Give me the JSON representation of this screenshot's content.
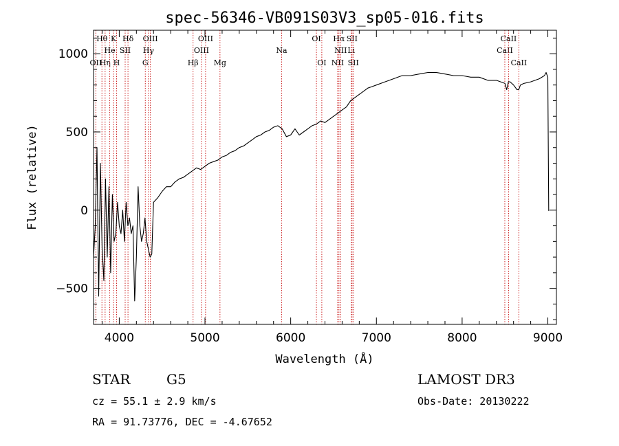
{
  "chart_data": {
    "type": "line",
    "title": "spec-56346-VB091S03V3_sp05-016.fits",
    "xlabel": "Wavelength (Å)",
    "ylabel": "Flux (relative)",
    "xlim": [
      3700,
      9100
    ],
    "ylim": [
      -730,
      1150
    ],
    "xticks": [
      4000,
      5000,
      6000,
      7000,
      8000,
      9000
    ],
    "yticks": [
      -500,
      0,
      500,
      1000
    ],
    "series": [
      {
        "name": "spectrum",
        "x": [
          3700,
          3720,
          3740,
          3760,
          3780,
          3800,
          3820,
          3840,
          3860,
          3880,
          3900,
          3920,
          3940,
          3960,
          3980,
          4000,
          4020,
          4040,
          4060,
          4080,
          4100,
          4120,
          4140,
          4160,
          4180,
          4200,
          4220,
          4240,
          4260,
          4280,
          4300,
          4320,
          4340,
          4360,
          4380,
          4400,
          4450,
          4500,
          4550,
          4600,
          4650,
          4700,
          4750,
          4800,
          4850,
          4900,
          4950,
          5000,
          5050,
          5100,
          5150,
          5200,
          5250,
          5300,
          5350,
          5400,
          5450,
          5500,
          5550,
          5600,
          5650,
          5700,
          5750,
          5800,
          5850,
          5900,
          5950,
          6000,
          6050,
          6100,
          6150,
          6200,
          6250,
          6300,
          6350,
          6400,
          6450,
          6500,
          6550,
          6600,
          6650,
          6700,
          6750,
          6800,
          6850,
          6900,
          6950,
          7000,
          7100,
          7200,
          7300,
          7400,
          7500,
          7600,
          7700,
          7800,
          7900,
          8000,
          8100,
          8200,
          8300,
          8400,
          8450,
          8500,
          8520,
          8540,
          8560,
          8600,
          8640,
          8660,
          8680,
          8720,
          8800,
          8900,
          8960,
          8980,
          9000,
          9010
        ],
        "y": [
          -300,
          -100,
          400,
          -550,
          300,
          -250,
          -450,
          200,
          -300,
          150,
          -400,
          100,
          -200,
          -150,
          50,
          -100,
          -150,
          0,
          -200,
          50,
          -100,
          -50,
          -150,
          -100,
          -580,
          -300,
          150,
          -100,
          -200,
          -150,
          -50,
          -200,
          -250,
          -300,
          -280,
          50,
          80,
          120,
          150,
          150,
          180,
          200,
          210,
          230,
          250,
          270,
          260,
          280,
          300,
          310,
          320,
          340,
          350,
          370,
          380,
          400,
          410,
          430,
          450,
          470,
          480,
          500,
          510,
          530,
          540,
          520,
          470,
          480,
          520,
          480,
          500,
          520,
          540,
          550,
          570,
          560,
          580,
          600,
          620,
          640,
          660,
          700,
          720,
          740,
          760,
          780,
          790,
          800,
          820,
          840,
          860,
          860,
          870,
          880,
          880,
          870,
          860,
          860,
          850,
          850,
          830,
          830,
          820,
          810,
          770,
          820,
          820,
          800,
          770,
          770,
          800,
          810,
          820,
          840,
          860,
          880,
          850,
          -5
        ],
        "color": "#000000"
      }
    ],
    "line_markers": [
      {
        "name": "OII",
        "wavelength": 3727,
        "label_row": 2
      },
      {
        "name": "Hθ",
        "wavelength": 3798,
        "label_row": 0
      },
      {
        "name": "Hη",
        "wavelength": 3835,
        "label_row": 2
      },
      {
        "name": "K",
        "wavelength": 3934,
        "label_row": 0
      },
      {
        "name": "He",
        "wavelength": 3889,
        "label_row": 1
      },
      {
        "name": "H",
        "wavelength": 3969,
        "label_row": 2
      },
      {
        "name": "SII",
        "wavelength": 4069,
        "label_row": 1
      },
      {
        "name": "Hδ",
        "wavelength": 4102,
        "label_row": 0
      },
      {
        "name": "G",
        "wavelength": 4304,
        "label_row": 2
      },
      {
        "name": "Hγ",
        "wavelength": 4341,
        "label_row": 1
      },
      {
        "name": "OIII",
        "wavelength": 4363,
        "label_row": 0
      },
      {
        "name": "Hβ",
        "wavelength": 4861,
        "label_row": 2
      },
      {
        "name": "OIII",
        "wavelength": 4959,
        "label_row": 1
      },
      {
        "name": "OIII",
        "wavelength": 5007,
        "label_row": 0
      },
      {
        "name": "Mg",
        "wavelength": 5175,
        "label_row": 2
      },
      {
        "name": "Na",
        "wavelength": 5894,
        "label_row": 1
      },
      {
        "name": "OI",
        "wavelength": 6300,
        "label_row": 0
      },
      {
        "name": "OI",
        "wavelength": 6363,
        "label_row": 2
      },
      {
        "name": "NII",
        "wavelength": 6548,
        "label_row": 2
      },
      {
        "name": "Hα",
        "wavelength": 6563,
        "label_row": 0
      },
      {
        "name": "NII",
        "wavelength": 6583,
        "label_row": 1
      },
      {
        "name": "Li",
        "wavelength": 6707,
        "label_row": 1
      },
      {
        "name": "SII",
        "wavelength": 6716,
        "label_row": 0
      },
      {
        "name": "SII",
        "wavelength": 6731,
        "label_row": 2
      },
      {
        "name": "CaII",
        "wavelength": 8498,
        "label_row": 1
      },
      {
        "name": "CaII",
        "wavelength": 8542,
        "label_row": 0
      },
      {
        "name": "CaII",
        "wavelength": 8662,
        "label_row": 2
      }
    ],
    "marker_color": "#cc2222",
    "label_rows": [
      0,
      1,
      2
    ]
  },
  "info": {
    "class": "STAR",
    "subclass": "G5",
    "cz": "cz = 55.1 ± 2.9 km/s",
    "radec": "RA =  91.73776, DEC =  -4.67652",
    "survey": "LAMOST DR3",
    "obsdate": "Obs-Date: 20130222"
  }
}
